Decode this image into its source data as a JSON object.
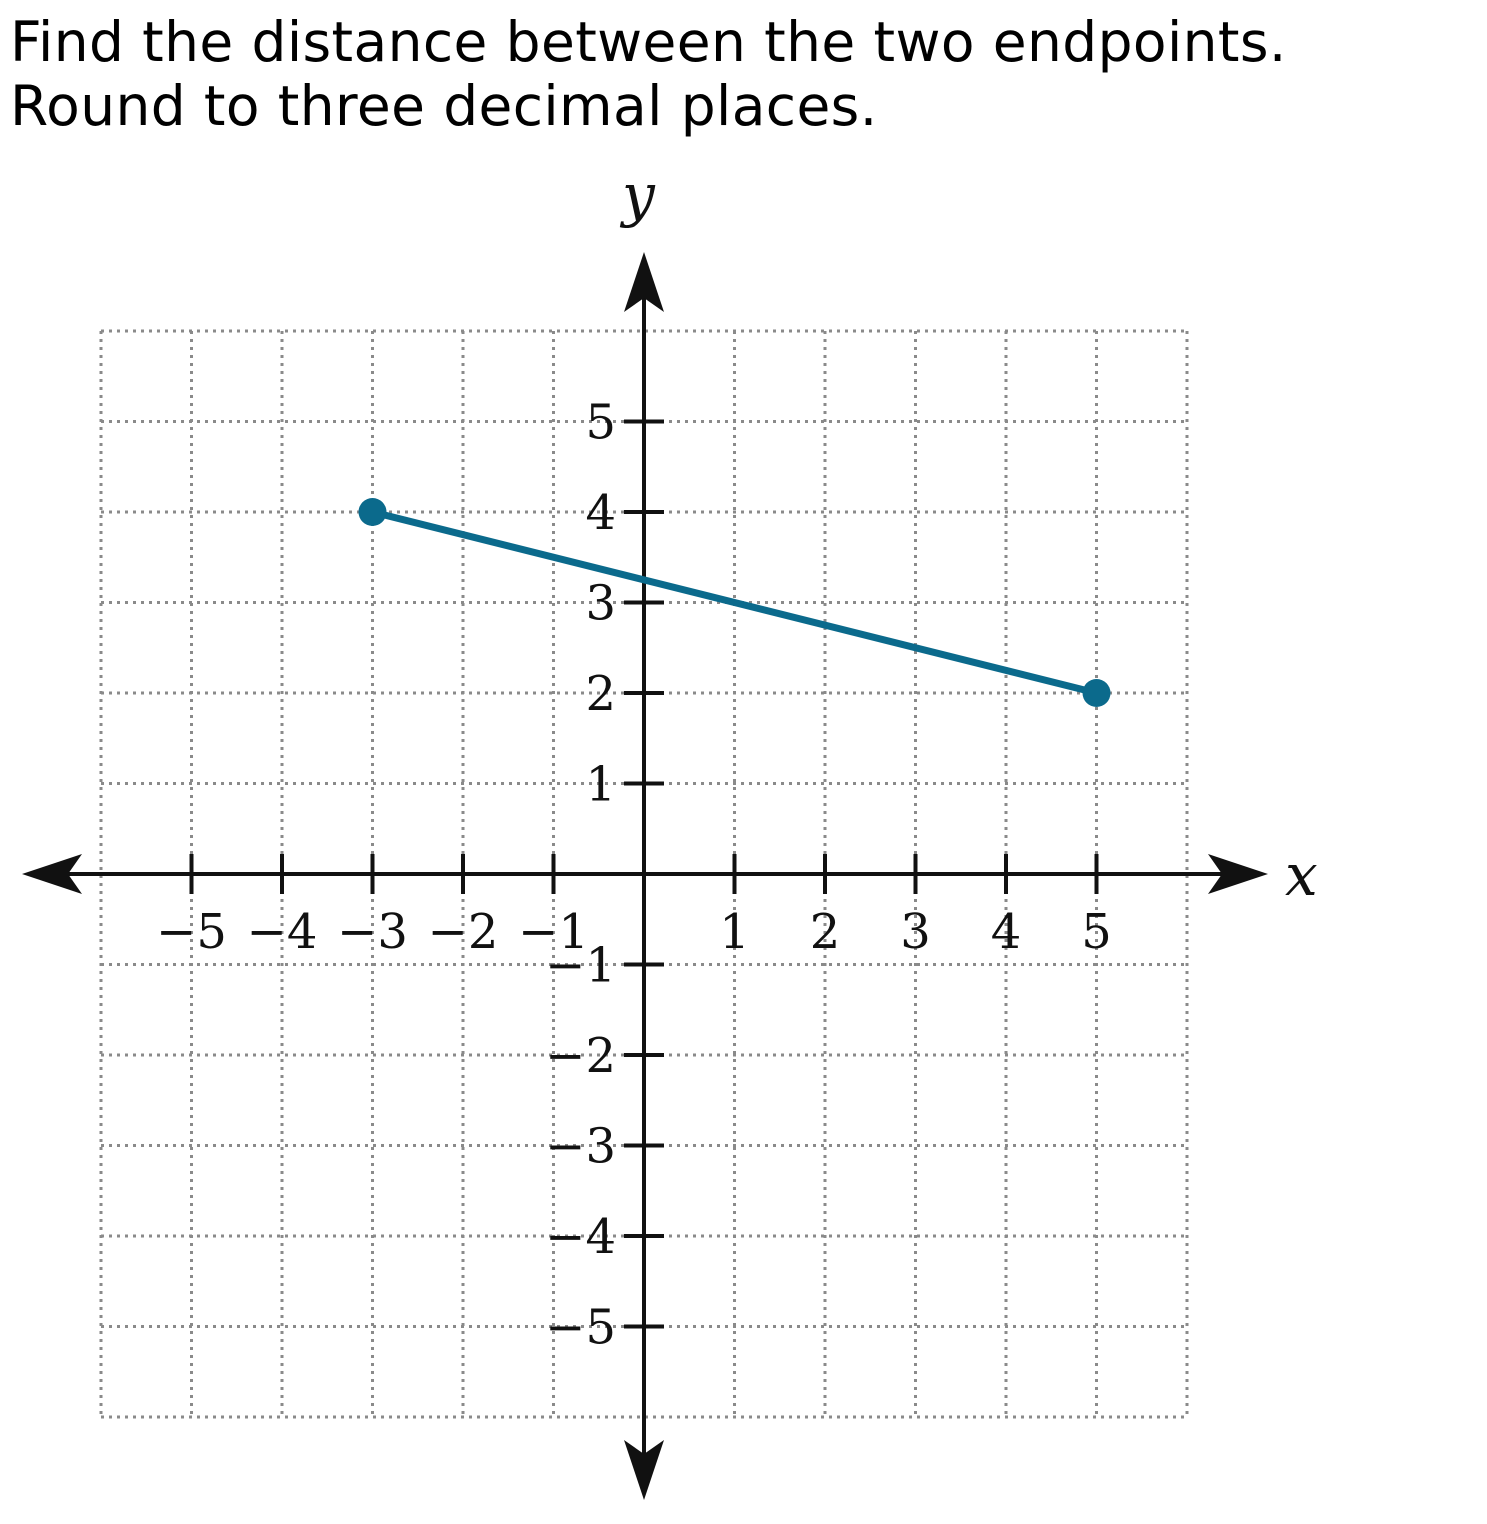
{
  "question": {
    "text": "Find the distance between the two endpoints. Round to three decimal places."
  },
  "chart_data": {
    "type": "line",
    "title": "",
    "xlabel": "x",
    "ylabel": "y",
    "xlim": [
      -6,
      6
    ],
    "ylim": [
      -6,
      6
    ],
    "x_ticks": [
      -5,
      -4,
      -3,
      -2,
      -1,
      1,
      2,
      3,
      4,
      5
    ],
    "y_ticks": [
      -5,
      -4,
      -3,
      -2,
      -1,
      1,
      2,
      3,
      4,
      5
    ],
    "x_tick_labels": [
      "−5",
      "−4",
      "−3",
      "−2",
      "−1",
      "1",
      "2",
      "3",
      "4",
      "5"
    ],
    "y_tick_labels": [
      "−5",
      "−4",
      "−3",
      "−2",
      "−1",
      "1",
      "2",
      "3",
      "4",
      "5"
    ],
    "grid": true,
    "grid_style": "dotted",
    "series": [
      {
        "points": [
          {
            "x": -3,
            "y": 4
          },
          {
            "x": 5,
            "y": 2
          }
        ],
        "color": "#0b6a8c",
        "endpoints": "closed"
      }
    ]
  }
}
